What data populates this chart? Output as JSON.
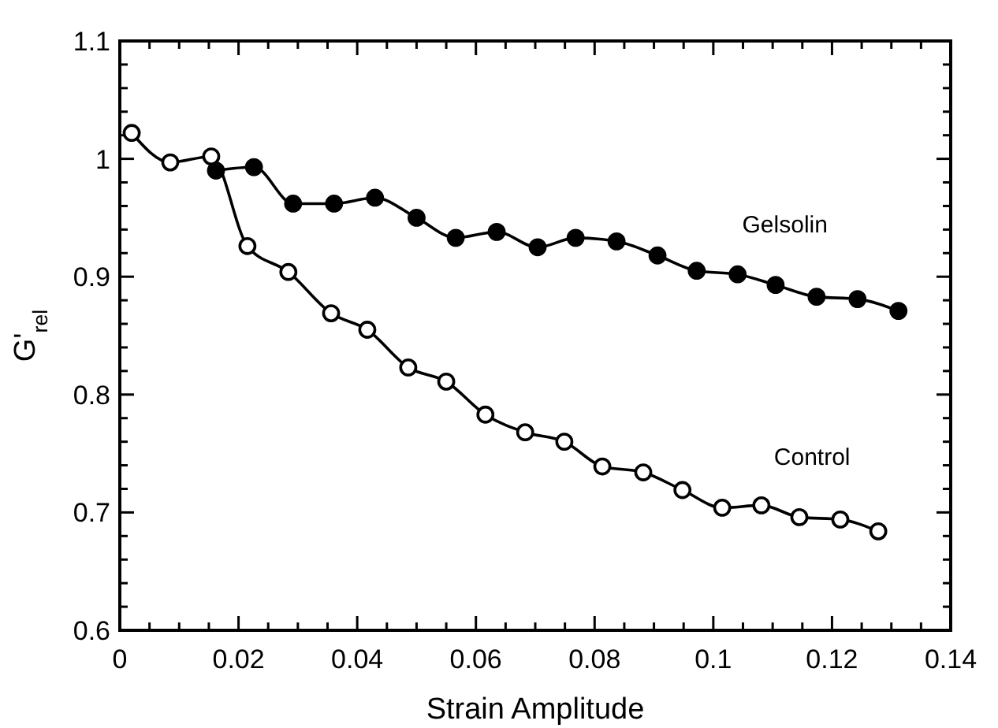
{
  "chart_data": {
    "type": "line",
    "xlabel": "Strain Amplitude",
    "ylabel": "G'$_{rel}$",
    "marker": "circle",
    "line_style": "solid",
    "xlim": [
      0,
      0.14
    ],
    "ylim": [
      0.6,
      1.1
    ],
    "xticks": [
      0,
      {
        "value": 0.005,
        "label": null
      },
      {
        "value": 0.01,
        "label": null
      },
      {
        "value": 0.015,
        "label": null
      },
      0.02,
      {
        "value": 0.025,
        "label": null
      },
      {
        "value": 0.03,
        "label": null
      },
      {
        "value": 0.035,
        "label": null
      },
      0.04,
      {
        "value": 0.045,
        "label": null
      },
      {
        "value": 0.05,
        "label": null
      },
      {
        "value": 0.055,
        "label": null
      },
      0.06,
      {
        "value": 0.065,
        "label": null
      },
      {
        "value": 0.07,
        "label": null
      },
      {
        "value": 0.075,
        "label": null
      },
      0.08,
      {
        "value": 0.085,
        "label": null
      },
      {
        "value": 0.09,
        "label": null
      },
      {
        "value": 0.095,
        "label": null
      },
      0.1,
      {
        "value": 0.105,
        "label": null
      },
      {
        "value": 0.11,
        "label": null
      },
      {
        "value": 0.115,
        "label": null
      },
      0.12,
      {
        "value": 0.125,
        "label": null
      },
      {
        "value": 0.13,
        "label": null
      },
      {
        "value": 0.135,
        "label": null
      },
      0.14
    ],
    "yticks": [
      0.6,
      {
        "value": 0.62,
        "label": null
      },
      {
        "value": 0.64,
        "label": null
      },
      {
        "value": 0.66,
        "label": null
      },
      {
        "value": 0.68,
        "label": null
      },
      0.7,
      {
        "value": 0.72,
        "label": null
      },
      {
        "value": 0.74,
        "label": null
      },
      {
        "value": 0.76,
        "label": null
      },
      {
        "value": 0.78,
        "label": null
      },
      0.8,
      {
        "value": 0.82,
        "label": null
      },
      {
        "value": 0.84,
        "label": null
      },
      {
        "value": 0.86,
        "label": null
      },
      {
        "value": 0.88,
        "label": null
      },
      0.9,
      {
        "value": 0.92,
        "label": null
      },
      {
        "value": 0.94,
        "label": null
      },
      {
        "value": 0.96,
        "label": null
      },
      {
        "value": 0.98,
        "label": null
      },
      1,
      {
        "value": 1.02,
        "label": null
      },
      {
        "value": 1.04,
        "label": null
      },
      {
        "value": 1.06,
        "label": null
      },
      {
        "value": 1.08,
        "label": null
      },
      1.1
    ],
    "series": [
      {
        "name": "Gelsolin",
        "color": "#000000",
        "x": [
          0.0162,
          0.0226,
          0.0292,
          0.0361,
          0.043,
          0.05,
          0.0566,
          0.0635,
          0.0704,
          0.0768,
          0.0837,
          0.0906,
          0.0972,
          0.1041,
          0.1105,
          0.1174,
          0.1243,
          0.1312
        ],
        "values": [
          0.99,
          0.993,
          0.962,
          0.962,
          0.967,
          0.95,
          0.933,
          0.938,
          0.925,
          0.933,
          0.93,
          0.918,
          0.905,
          0.902,
          0.893,
          0.883,
          0.881,
          0.871
        ]
      },
      {
        "name": "Control",
        "color": "#000000",
        "x": [
          0.002,
          0.0085,
          0.0154,
          0.0215,
          0.0284,
          0.0356,
          0.0417,
          0.0486,
          0.055,
          0.0616,
          0.0683,
          0.0749,
          0.0813,
          0.0882,
          0.0948,
          0.1015,
          0.1081,
          0.1145,
          0.1214,
          0.1278
        ],
        "values": [
          1.022,
          0.997,
          1.002,
          0.926,
          0.904,
          0.869,
          0.855,
          0.823,
          0.811,
          0.783,
          0.768,
          0.76,
          0.739,
          0.734,
          0.719,
          0.704,
          0.706,
          0.696,
          0.694,
          0.684
        ]
      }
    ]
  }
}
